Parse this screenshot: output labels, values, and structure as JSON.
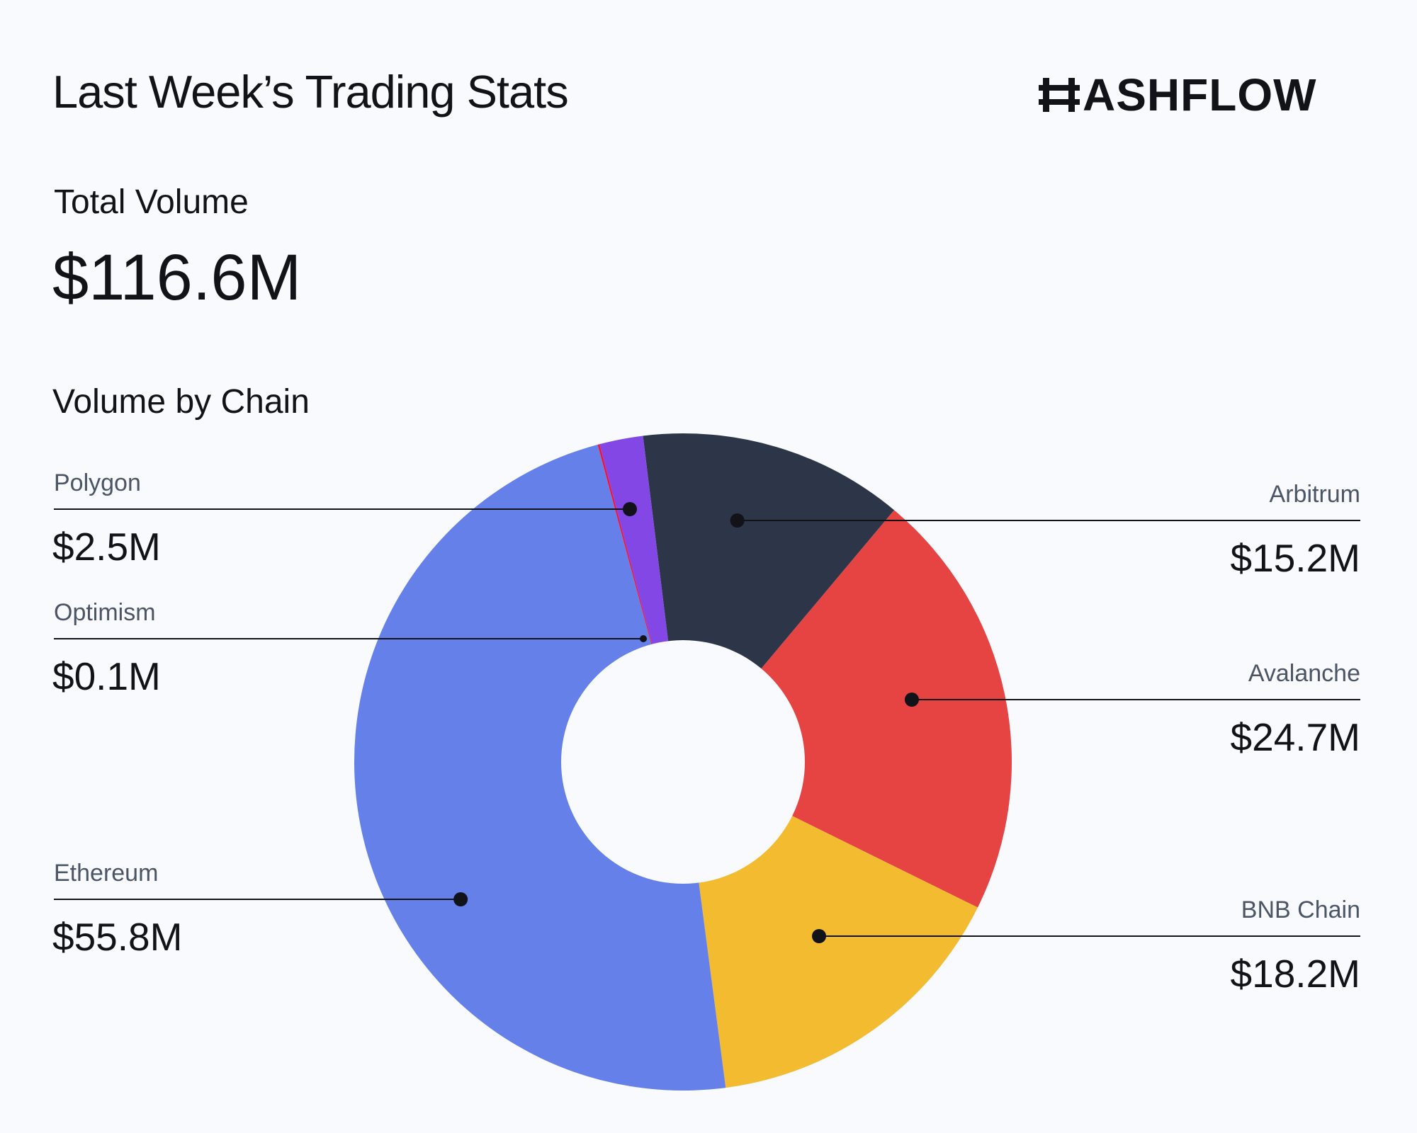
{
  "header": {
    "title": "Last Week’s Trading Stats",
    "logo_text": "ASHFLOW"
  },
  "total": {
    "label": "Total Volume",
    "value": "$116.6M"
  },
  "section_label": "Volume by Chain",
  "colors": {
    "background": "#f8fafd",
    "text": "#111318",
    "muted_text": "#4b5565"
  },
  "chart_data": {
    "type": "pie",
    "variant": "donut",
    "title": "",
    "unit": "$M",
    "series": [
      {
        "name": "Arbitrum",
        "value": 15.2,
        "label": "$15.2M",
        "color": "#2d3548"
      },
      {
        "name": "Avalanche",
        "value": 24.7,
        "label": "$24.7M",
        "color": "#e64343"
      },
      {
        "name": "BNB Chain",
        "value": 18.2,
        "label": "$18.2M",
        "color": "#f2bb30"
      },
      {
        "name": "Ethereum",
        "value": 55.8,
        "label": "$55.8M",
        "color": "#6680e9"
      },
      {
        "name": "Optimism",
        "value": 0.1,
        "label": "$0.1M",
        "color": "#fb0d28"
      },
      {
        "name": "Polygon",
        "value": 2.5,
        "label": "$2.5M",
        "color": "#8247e5"
      }
    ],
    "slice_order": "clockwise from top: Arbitrum, Avalanche, BNB Chain, Ethereum, Optimism, Polygon",
    "label_placement": "callouts left and right of the donut"
  }
}
